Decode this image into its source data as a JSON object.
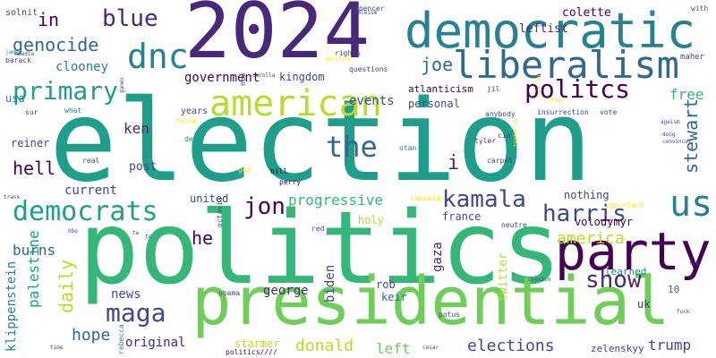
{
  "palette": {
    "purple": "#440154",
    "indigo": "#482878",
    "deep_blue": "#3e4989",
    "blue": "#31688e",
    "teal": "#26828e",
    "cyan": "#1f9e89",
    "green": "#35b779",
    "light_green": "#6ece58",
    "lime": "#b5de2b",
    "yellow": "#fde725"
  },
  "words": [
    {
      "text": "election",
      "color": "#1f9e89"
    },
    {
      "text": "politics",
      "color": "#35b779"
    },
    {
      "text": "2024",
      "color": "#482878"
    },
    {
      "text": "presidential",
      "color": "#6ece58"
    },
    {
      "text": "democratic",
      "color": "#26828e"
    },
    {
      "text": "party",
      "color": "#440154"
    },
    {
      "text": "liberalism",
      "color": "#31688e"
    },
    {
      "text": "american",
      "color": "#b5de2b"
    },
    {
      "text": "dnc",
      "color": "#26828e"
    },
    {
      "text": "us",
      "color": "#26828e"
    },
    {
      "text": "democrats",
      "color": "#1f9e89"
    },
    {
      "text": "the",
      "color": "#31688e"
    },
    {
      "text": "politcs",
      "color": "#440154"
    },
    {
      "text": "primary",
      "color": "#1f9e89"
    },
    {
      "text": "maga",
      "color": "#3e4989"
    },
    {
      "text": "kamala",
      "color": "#3e4989"
    },
    {
      "text": "blue",
      "color": "#482878"
    },
    {
      "text": "jon",
      "color": "#440154"
    },
    {
      "text": "show",
      "color": "#482878"
    },
    {
      "text": "harris",
      "color": "#3e4989"
    },
    {
      "text": "stewart",
      "color": "#31688e"
    },
    {
      "text": "america",
      "color": "#b5de2b"
    },
    {
      "text": "genocide",
      "color": "#31688e"
    },
    {
      "text": "joe",
      "color": "#31688e"
    },
    {
      "text": "free",
      "color": "#35b779"
    },
    {
      "text": "hell",
      "color": "#440154"
    },
    {
      "text": "in",
      "color": "#440154"
    },
    {
      "text": "i",
      "color": "#482878"
    },
    {
      "text": "daily",
      "color": "#b5de2b"
    },
    {
      "text": "palestine",
      "color": "#1f9e89"
    },
    {
      "text": "burns",
      "color": "#31688e"
    },
    {
      "text": "hope",
      "color": "#31688e"
    },
    {
      "text": "progressive",
      "color": "#35b779"
    },
    {
      "text": "he",
      "color": "#440154"
    },
    {
      "text": "elections",
      "color": "#3e4989"
    },
    {
      "text": "donald",
      "color": "#b5de2b"
    },
    {
      "text": "trump",
      "color": "#3e4989"
    },
    {
      "text": "george",
      "color": "#482878"
    },
    {
      "text": "gaza",
      "color": "#482878"
    },
    {
      "text": "left",
      "color": "#6ece58"
    },
    {
      "text": "news",
      "color": "#3e4989"
    },
    {
      "text": "original",
      "color": "#482878"
    },
    {
      "text": "ken",
      "color": "#482878"
    },
    {
      "text": "events",
      "color": "#3e4989"
    },
    {
      "text": "government",
      "color": "#440154"
    },
    {
      "text": "clooney",
      "color": "#26828e"
    },
    {
      "text": "current",
      "color": "#3e4989"
    },
    {
      "text": "klippenstein",
      "color": "#26828e"
    },
    {
      "text": "biden",
      "color": "#3e4989"
    },
    {
      "text": "rob",
      "color": "#3e4989"
    },
    {
      "text": "twitter",
      "color": "#b5de2b"
    },
    {
      "text": "post",
      "color": "#3e4989"
    },
    {
      "text": "colette",
      "color": "#440154"
    },
    {
      "text": "leftist",
      "color": "#482878"
    },
    {
      "text": "reiner",
      "color": "#3e4989"
    },
    {
      "text": "usa",
      "color": "#26828e"
    },
    {
      "text": "kingdom",
      "color": "#3e4989"
    },
    {
      "text": "personal",
      "color": "#3e4989"
    },
    {
      "text": "atlanticism",
      "color": "#440154"
    },
    {
      "text": "nothing",
      "color": "#3e4989"
    },
    {
      "text": "united",
      "color": "#3e4989"
    },
    {
      "text": "holy",
      "color": "#b5de2b"
    },
    {
      "text": "volodymyr",
      "color": "#440154"
    },
    {
      "text": "france",
      "color": "#3e4989"
    },
    {
      "text": "keir",
      "color": "#31688e"
    },
    {
      "text": "uk",
      "color": "#482878"
    },
    {
      "text": "starmer",
      "color": "#b5de2b"
    },
    {
      "text": "zelenskyy",
      "color": "#3e4989"
    },
    {
      "text": "learned",
      "color": "#26828e"
    },
    {
      "text": "10",
      "color": "#31688e"
    },
    {
      "text": "solnit",
      "color": "#3e4989"
    },
    {
      "text": "years",
      "color": "#3e4989"
    },
    {
      "text": "rights",
      "color": "#3e4989"
    },
    {
      "text": "spencer",
      "color": "#3e4989"
    },
    {
      "text": "maher",
      "color": "#3e4989"
    },
    {
      "text": "with",
      "color": "#3e4989"
    },
    {
      "text": "barack",
      "color": "#3e4989"
    },
    {
      "text": "abortion",
      "color": "#fde725"
    },
    {
      "text": "ableism",
      "color": "#3e4989"
    },
    {
      "text": "james",
      "color": "#26828e"
    },
    {
      "text": "media",
      "color": "#3e4989"
    },
    {
      "text": "new",
      "color": "#3e4989"
    },
    {
      "text": "questions",
      "color": "#3e4989"
    },
    {
      "text": "crap",
      "color": "#fde725"
    },
    {
      "text": "jil",
      "color": "#3e4989"
    },
    {
      "text": "suicide",
      "color": "#fde725"
    },
    {
      "text": "rebecca",
      "color": "#26828e"
    },
    {
      "text": "what",
      "color": "#26828e"
    },
    {
      "text": "sur",
      "color": "#3e4989"
    },
    {
      "text": "think",
      "color": "#fde725"
    },
    {
      "text": "anybody",
      "color": "#3e4989"
    },
    {
      "text": "insurrection",
      "color": "#3e4989"
    },
    {
      "text": "vote",
      "color": "#3e4989"
    },
    {
      "text": "ageism",
      "color": "#3e4989"
    },
    {
      "text": "de",
      "color": "#26828e"
    },
    {
      "text": "tentative",
      "color": "#fde725"
    },
    {
      "text": "otan",
      "color": "#26828e"
    },
    {
      "text": "tyler",
      "color": "#3e4989"
    },
    {
      "text": "cia",
      "color": "#3e4989"
    },
    {
      "text": "carpet",
      "color": "#3e4989"
    },
    {
      "text": "real",
      "color": "#3e4989"
    },
    {
      "text": "gop",
      "color": "#fde725"
    },
    {
      "text": "bill",
      "color": "#440154"
    },
    {
      "text": "perry",
      "color": "#440154"
    },
    {
      "text": "campaign",
      "color": "#fde725"
    },
    {
      "text": "trans",
      "color": "#3e4989"
    },
    {
      "text": "octavia",
      "color": "#3e4989"
    },
    {
      "text": "red",
      "color": "#3e4989"
    },
    {
      "text": "neutre",
      "color": "#3e4989"
    },
    {
      "text": "important",
      "color": "#fde725"
    },
    {
      "text": "coussin",
      "color": "#3e4989"
    },
    {
      "text": "fjb",
      "color": "#3e4989"
    },
    {
      "text": "hbo",
      "color": "#3e4989"
    },
    {
      "text": "potus",
      "color": "#3e4989"
    },
    {
      "text": "obama",
      "color": "#3e4989"
    },
    {
      "text": "time",
      "color": "#3e4989"
    },
    {
      "text": "politics////",
      "color": "#440154"
    },
    {
      "text": "carolla",
      "color": "#3e4989"
    },
    {
      "text": "games",
      "color": "#3e4989"
    },
    {
      "text": "dong",
      "color": "#3e4989"
    },
    {
      "text": "convincer",
      "color": "#3e4989"
    },
    {
      "text": "fuck",
      "color": "#3e4989"
    },
    {
      "text": "cesar",
      "color": "#3e4989"
    },
    {
      "text": "tw",
      "color": "#3e4989"
    },
    {
      "text": "tc",
      "color": "#3e4989"
    }
  ]
}
